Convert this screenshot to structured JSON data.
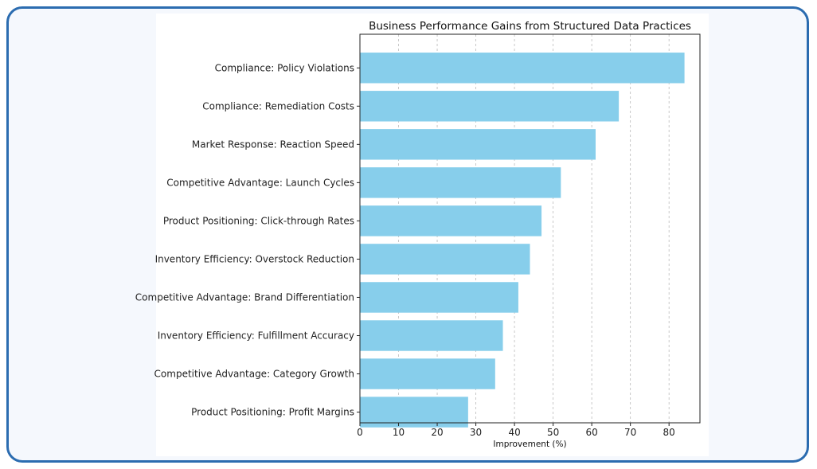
{
  "chart_data": {
    "type": "bar",
    "orientation": "horizontal",
    "title": "Business Performance Gains from Structured Data Practices",
    "xlabel": "Improvement (%)",
    "ylabel": "",
    "xlim": [
      0,
      88
    ],
    "xticks": [
      0,
      10,
      20,
      30,
      40,
      50,
      60,
      70,
      80
    ],
    "grid": "x dashed",
    "bar_color": "#87ceeb",
    "categories": [
      "Compliance: Policy Violations",
      "Compliance: Remediation Costs",
      "Market Response: Reaction Speed",
      "Competitive Advantage: Launch Cycles",
      "Product Positioning: Click-through Rates",
      "Inventory Efficiency: Overstock Reduction",
      "Competitive Advantage: Brand Differentiation",
      "Inventory Efficiency: Fulfillment Accuracy",
      "Competitive Advantage: Category Growth",
      "Product Positioning: Profit Margins"
    ],
    "values": [
      84,
      67,
      61,
      52,
      47,
      44,
      41,
      37,
      35,
      28
    ]
  },
  "colors": {
    "frame_border": "#2b6cb0",
    "frame_background": "#f5f8fd"
  }
}
